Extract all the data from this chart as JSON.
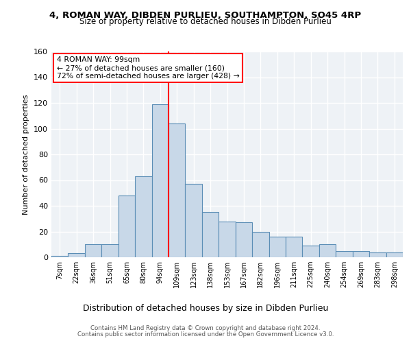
{
  "title_line1": "4, ROMAN WAY, DIBDEN PURLIEU, SOUTHAMPTON, SO45 4RP",
  "title_line2": "Size of property relative to detached houses in Dibden Purlieu",
  "xlabel": "Distribution of detached houses by size in Dibden Purlieu",
  "ylabel": "Number of detached properties",
  "footer_line1": "Contains HM Land Registry data © Crown copyright and database right 2024.",
  "footer_line2": "Contains public sector information licensed under the Open Government Licence v3.0.",
  "annotation_title": "4 ROMAN WAY: 99sqm",
  "annotation_line1": "← 27% of detached houses are smaller (160)",
  "annotation_line2": "72% of semi-detached houses are larger (428) →",
  "bar_labels": [
    "7sqm",
    "22sqm",
    "36sqm",
    "51sqm",
    "65sqm",
    "80sqm",
    "94sqm",
    "109sqm",
    "123sqm",
    "138sqm",
    "153sqm",
    "167sqm",
    "182sqm",
    "196sqm",
    "211sqm",
    "225sqm",
    "240sqm",
    "254sqm",
    "269sqm",
    "283sqm",
    "298sqm"
  ],
  "bar_values": [
    1,
    3,
    10,
    10,
    48,
    63,
    119,
    104,
    57,
    35,
    28,
    27,
    20,
    16,
    16,
    9,
    10,
    5,
    5,
    4,
    4
  ],
  "bar_color": "#c8d8e8",
  "bar_edge_color": "#5a8db5",
  "vline_x_index": 6,
  "vline_color": "red",
  "ylim": [
    0,
    160
  ],
  "yticks": [
    0,
    20,
    40,
    60,
    80,
    100,
    120,
    140,
    160
  ],
  "bg_color": "#eef2f6",
  "annotation_box_color": "white",
  "annotation_box_edge": "red",
  "title1_fontsize": 9.5,
  "title2_fontsize": 8.5,
  "ylabel_fontsize": 8,
  "xlabel_fontsize": 9,
  "tick_fontsize": 7,
  "footer_fontsize": 6.2,
  "annotation_fontsize": 7.8
}
